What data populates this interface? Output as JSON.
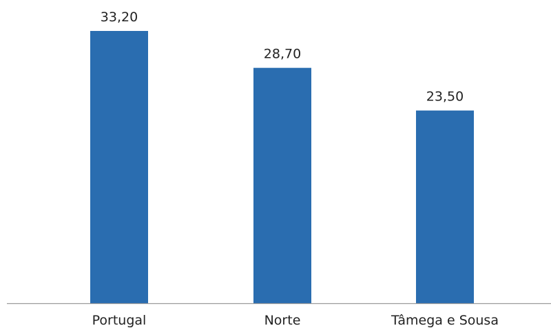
{
  "chart_data": {
    "type": "bar",
    "categories": [
      "Portugal",
      "Norte",
      "Tâmega e Sousa"
    ],
    "values": [
      33.2,
      28.7,
      23.5
    ],
    "value_labels": [
      "33,20",
      "28,70",
      "23,50"
    ],
    "title": "",
    "xlabel": "",
    "ylabel": "",
    "ylim": [
      0,
      33.2
    ],
    "grid": false,
    "legend": "none",
    "bar_color": "#2a6db0",
    "axis_color": "#9a9a9a"
  }
}
